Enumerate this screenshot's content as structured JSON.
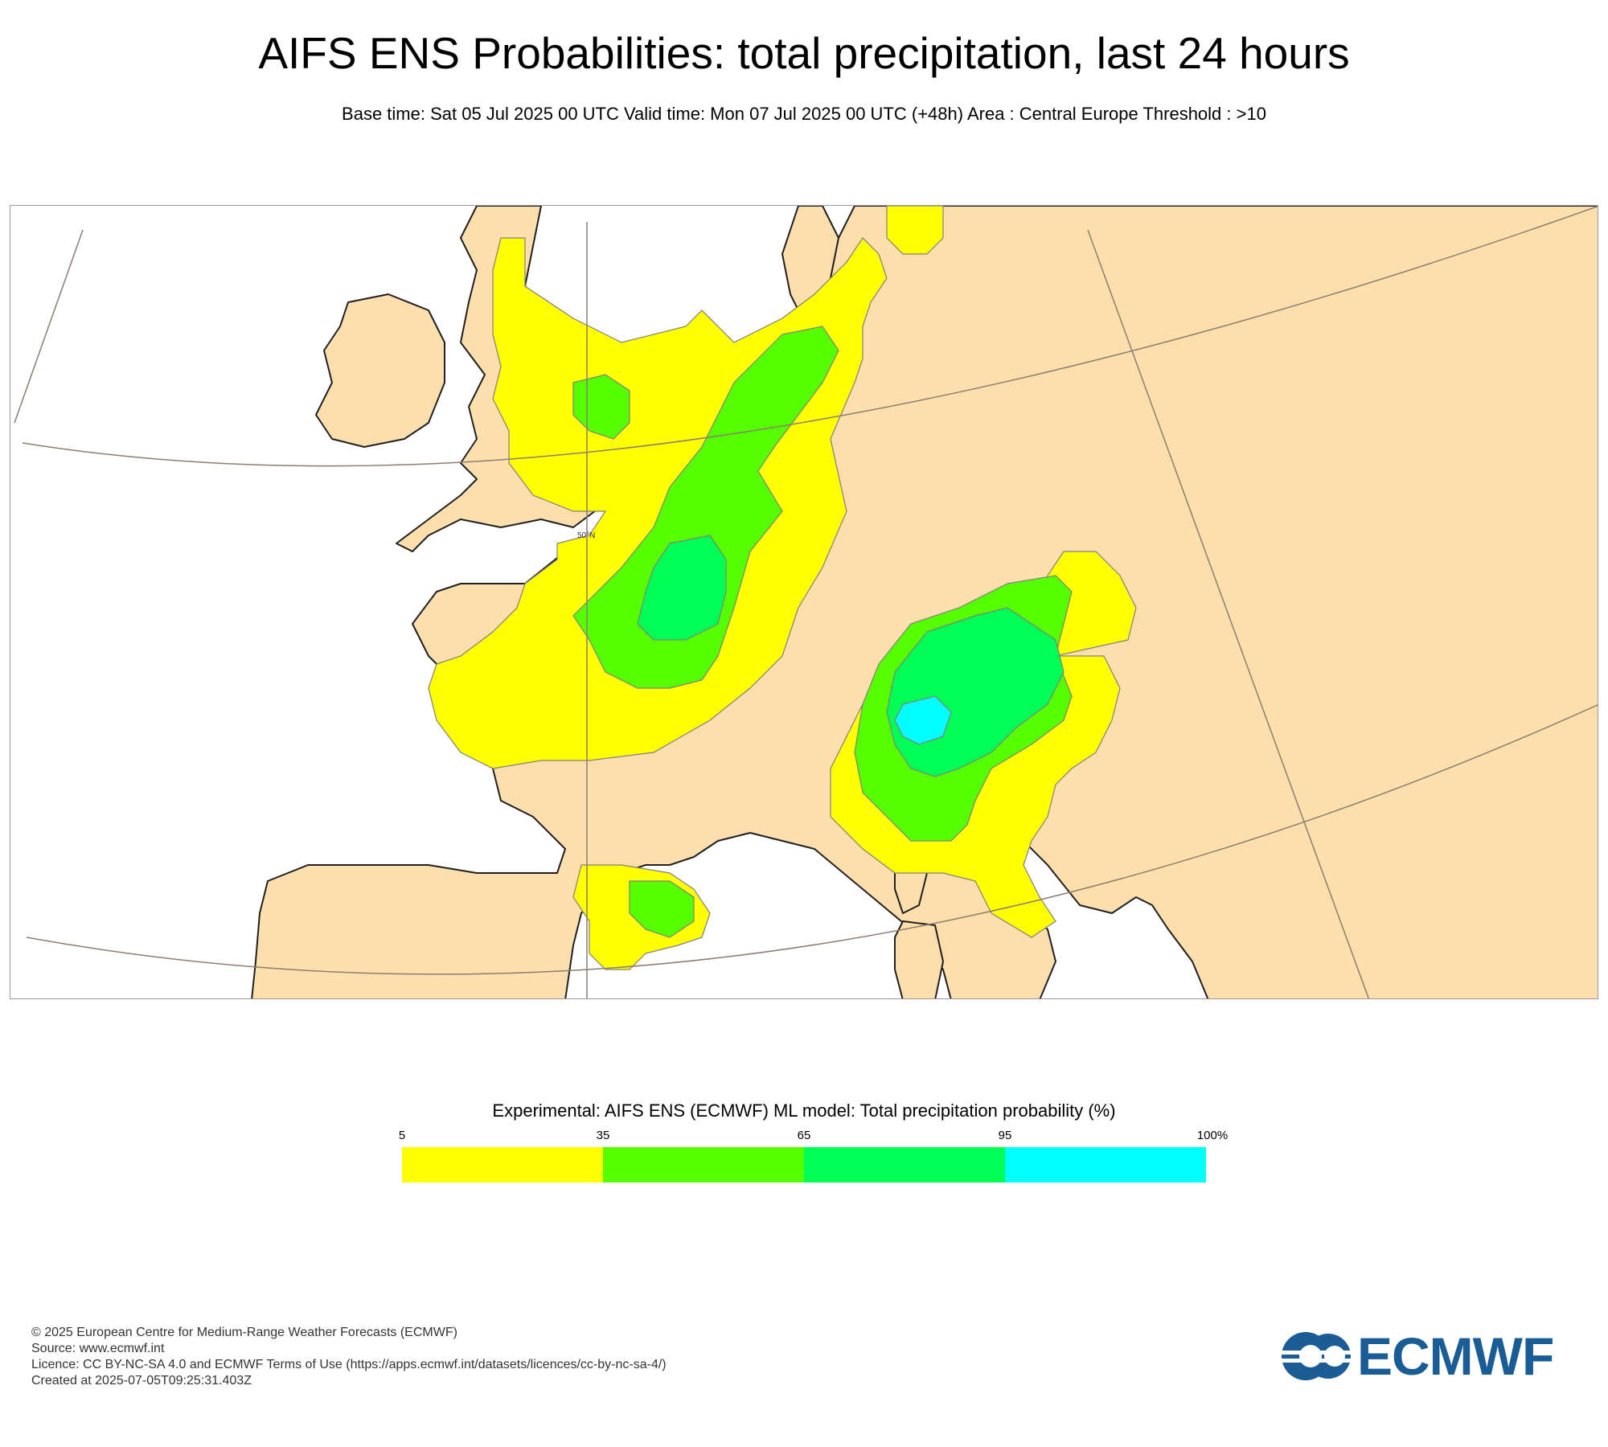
{
  "header": {
    "title": "AIFS ENS Probabilities:  total precipitation, last 24 hours",
    "subtitle": "Base time: Sat 05 Jul 2025 00 UTC Valid time: Mon 07 Jul 2025 00 UTC (+48h) Area : Central Europe Threshold : >10"
  },
  "map": {
    "gridline_label": "50°N",
    "colors": {
      "sea": "#ffffff",
      "land": "#fddfae",
      "coast": "#202020",
      "grid": "#8b7e6e"
    }
  },
  "legend": {
    "title": "Experimental: AIFS ENS (ECMWF) ML model: Total precipitation probability (%)",
    "ticks": [
      "5",
      "35",
      "65",
      "95",
      "100%"
    ],
    "bins": [
      {
        "from": 5,
        "to": 35,
        "color": "#ffff00"
      },
      {
        "from": 35,
        "to": 65,
        "color": "#55ff00"
      },
      {
        "from": 65,
        "to": 95,
        "color": "#00ff55"
      },
      {
        "from": 95,
        "to": 100,
        "color": "#00ffff"
      }
    ]
  },
  "footer": {
    "copyright": "© 2025 European Centre for Medium-Range Weather Forecasts (ECMWF)",
    "source": "Source: www.ecmwf.int",
    "licence": "Licence: CC BY-NC-SA 4.0 and ECMWF Terms of Use (https://apps.ecmwf.int/datasets/licences/cc-by-nc-sa-4/)",
    "created": "Created at 2025-07-05T09:25:31.403Z"
  },
  "logo": {
    "text": "ECMWF",
    "color": "#1a5c96"
  }
}
